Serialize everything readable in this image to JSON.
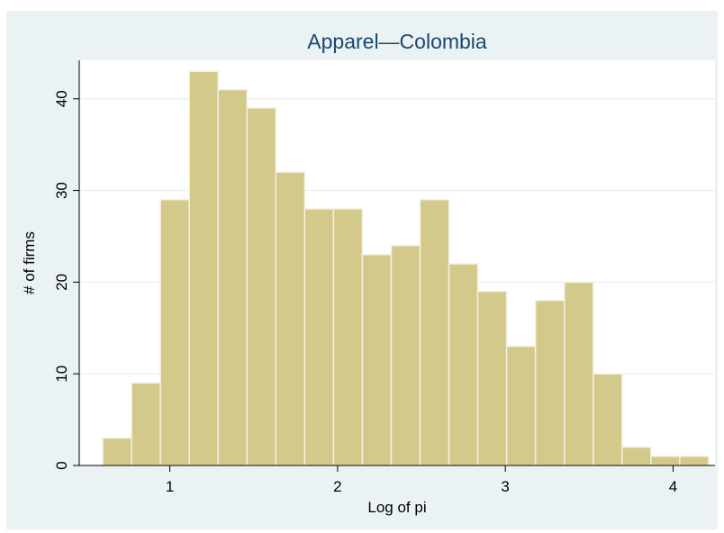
{
  "chart_data": {
    "type": "bar",
    "title": "Apparel—Colombia",
    "xlabel": "Log of pi",
    "ylabel": "# of firms",
    "bin_width": 0.172,
    "bins_start": [
      0.6,
      0.772,
      0.944,
      1.116,
      1.288,
      1.46,
      1.632,
      1.804,
      1.976,
      2.148,
      2.32,
      2.492,
      2.664,
      2.836,
      3.008,
      3.18,
      3.352,
      3.524,
      3.696,
      3.868,
      4.04
    ],
    "values": [
      3,
      9,
      29,
      43,
      41,
      39,
      32,
      28,
      28,
      23,
      24,
      29,
      22,
      19,
      13,
      18,
      20,
      10,
      2,
      1,
      1
    ],
    "xlim": [
      0.46,
      4.25
    ],
    "ylim": [
      0,
      44.2
    ],
    "x_ticks": [
      1,
      2,
      3,
      4
    ],
    "x_tick_labels": [
      "1",
      "2",
      "3",
      "4"
    ],
    "y_ticks": [
      0,
      10,
      20,
      30,
      40
    ],
    "y_tick_labels": [
      "0",
      "10",
      "20",
      "30",
      "40"
    ],
    "grid": true,
    "colors": {
      "bar_fill": "#d3c98a",
      "bar_stroke": "#f4f1e0",
      "plot_background": "#ffffff",
      "frame_background": "#eaf2f3",
      "grid": "#e9eef0",
      "title": "#1a476f"
    }
  }
}
